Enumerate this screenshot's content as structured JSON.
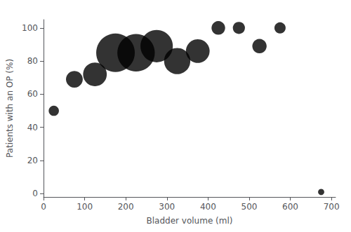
{
  "chart_data": {
    "type": "scatter",
    "x": [
      25,
      75,
      125,
      175,
      225,
      275,
      325,
      375,
      425,
      475,
      525,
      575,
      675
    ],
    "y": [
      50,
      69,
      72,
      85,
      85,
      89,
      80,
      86,
      100,
      100,
      89,
      100,
      1
    ],
    "sizes": [
      4,
      13,
      28,
      80,
      75,
      55,
      35,
      28,
      8,
      6,
      9,
      5,
      1
    ],
    "color": "#000000",
    "xlabel": "Bladder volume (ml)",
    "ylabel": "Patients with an OP (%)",
    "xlim": [
      0,
      710
    ],
    "ylim": [
      -2,
      105
    ],
    "xticks": [
      0,
      100,
      200,
      300,
      400,
      500,
      600,
      700
    ],
    "yticks": [
      0,
      20,
      40,
      60,
      80,
      100
    ],
    "grid": false
  }
}
